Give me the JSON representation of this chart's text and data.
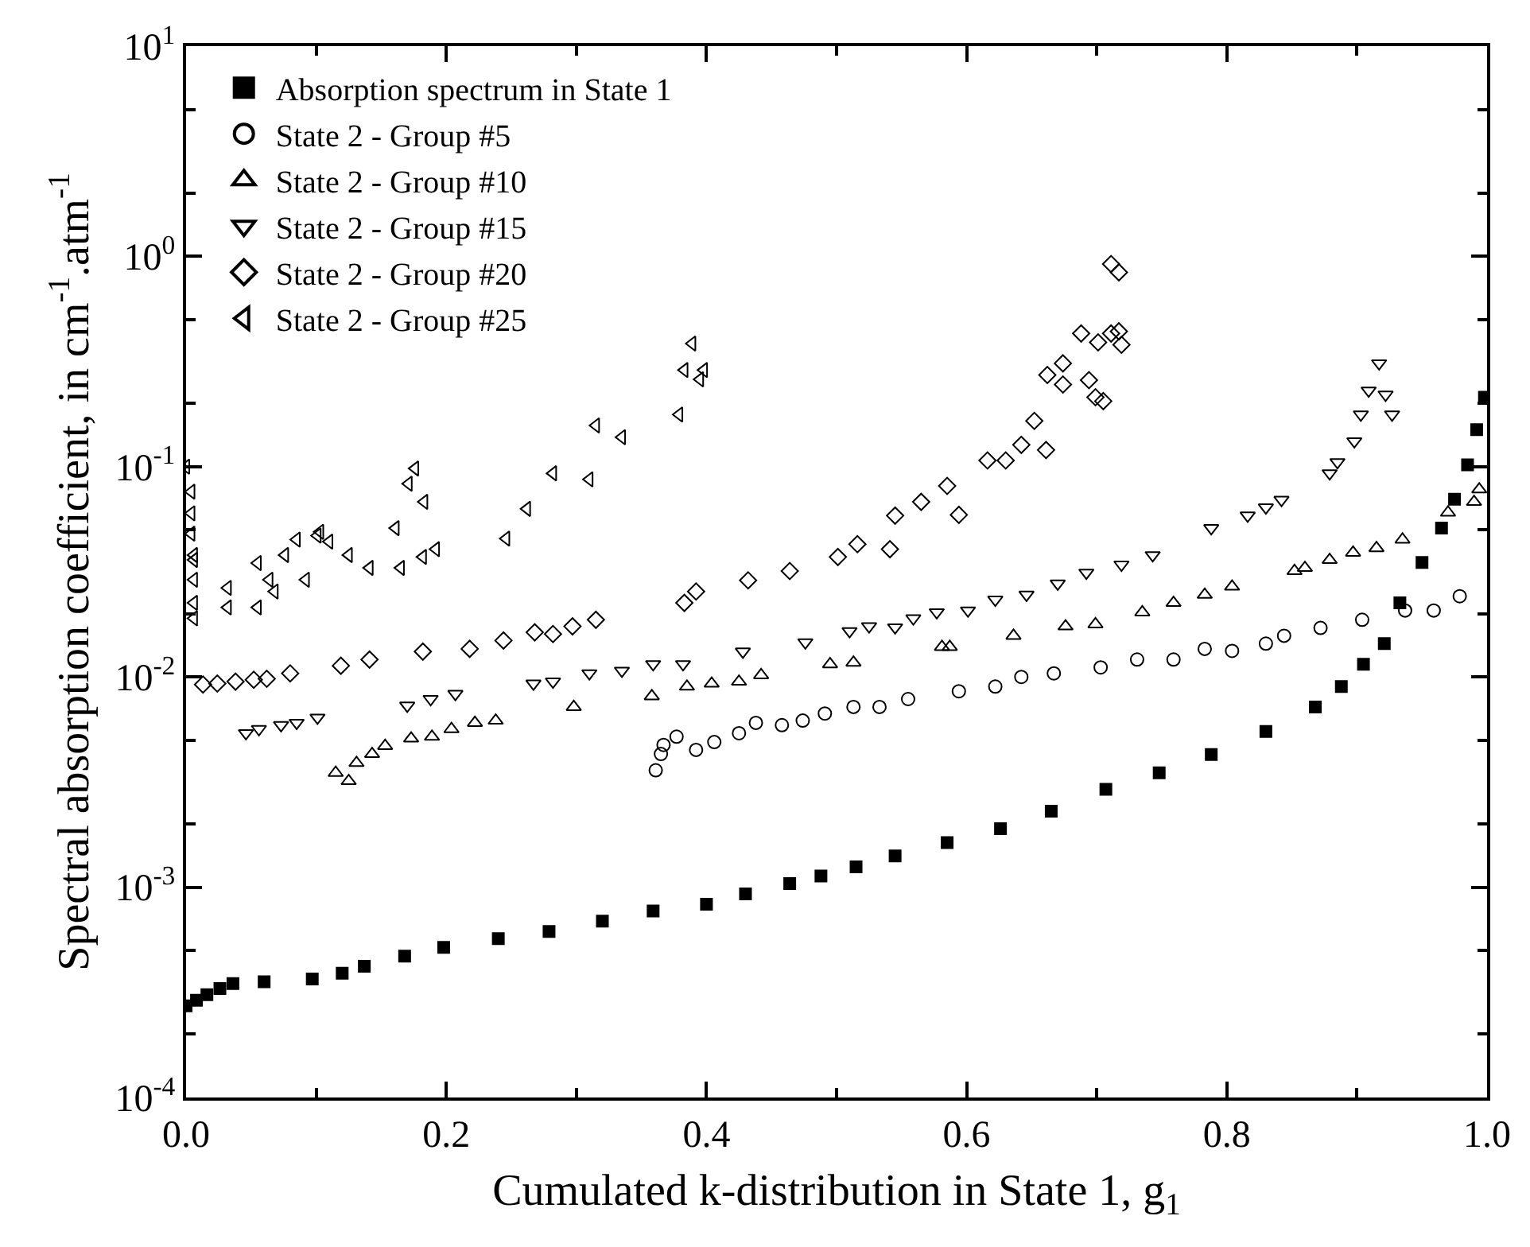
{
  "chart_data": {
    "type": "scatter",
    "xlabel": "Cumulated k-distribution in State 1, g$_{1}$",
    "ylabel": "Spectral absorption coefficient, in cm$^{-1}$.atm$^{-1}$",
    "xlim": [
      0,
      1
    ],
    "xticks": [
      {
        "value": 0,
        "label": "0.0"
      },
      0.2,
      0.4,
      0.6,
      0.8,
      {
        "value": 1,
        "label": "1.0"
      }
    ],
    "ylim": [
      0.0001,
      10
    ],
    "yticks": [
      {
        "value": 0.0001,
        "label": "10$^{-4}$"
      },
      {
        "value": 0.001,
        "label": "10$^{-3}$"
      },
      {
        "value": 0.01,
        "label": "10$^{-2}$"
      },
      {
        "value": 0.1,
        "label": "10$^{-1}$"
      },
      {
        "value": 1,
        "label": "10$^{0}$"
      },
      {
        "value": 10,
        "label": "10$^{1}$"
      }
    ],
    "log": "y",
    "legend": "top left",
    "series": [
      {
        "name": "Absorption spectrum in State 1",
        "color": "#000000",
        "marker": "square",
        "x": [
          0,
          0.008,
          0.016,
          0.026,
          0.036,
          0.06,
          0.097,
          0.12,
          0.137,
          0.168,
          0.198,
          0.24,
          0.279,
          0.32,
          0.359,
          0.4,
          0.43,
          0.464,
          0.488,
          0.515,
          0.545,
          0.585,
          0.626,
          0.665,
          0.707,
          0.748,
          0.788,
          0.83,
          0.868,
          0.888,
          0.905,
          0.921,
          0.933,
          0.95,
          0.965,
          0.975,
          0.985,
          0.992,
          0.998
        ],
        "values": [
          0.000273,
          0.00029,
          0.000308,
          0.00033,
          0.000348,
          0.000355,
          0.000366,
          0.00039,
          0.000421,
          0.00047,
          0.000518,
          0.00057,
          0.000616,
          0.00069,
          0.00077,
          0.00083,
          0.00093,
          0.00104,
          0.00113,
          0.00125,
          0.00141,
          0.00163,
          0.0019,
          0.0023,
          0.00292,
          0.0035,
          0.00428,
          0.0055,
          0.0072,
          0.009,
          0.0115,
          0.0144,
          0.0225,
          0.035,
          0.051,
          0.07,
          0.102,
          0.15,
          0.214
        ]
      },
      {
        "name": "State 2 - Group #5",
        "color": "#000000",
        "marker": "circle",
        "x": [
          0.361,
          0.365,
          0.367,
          0.377,
          0.392,
          0.406,
          0.425,
          0.438,
          0.458,
          0.474,
          0.491,
          0.513,
          0.533,
          0.555,
          0.594,
          0.622,
          0.642,
          0.667,
          0.703,
          0.731,
          0.759,
          0.783,
          0.804,
          0.83,
          0.844,
          0.872,
          0.904,
          0.937,
          0.959,
          0.979
        ],
        "values": [
          0.0036,
          0.0043,
          0.00475,
          0.0052,
          0.0045,
          0.0049,
          0.0054,
          0.00605,
          0.0059,
          0.0062,
          0.0067,
          0.0072,
          0.0072,
          0.00785,
          0.00855,
          0.009,
          0.01,
          0.0104,
          0.0111,
          0.0121,
          0.0121,
          0.0136,
          0.0133,
          0.0144,
          0.0157,
          0.0171,
          0.0187,
          0.0207,
          0.0207,
          0.0242
        ]
      },
      {
        "name": "State 2 - Group #10",
        "color": "#000000",
        "marker": "triangle",
        "x": [
          0.115,
          0.125,
          0.131,
          0.143,
          0.153,
          0.173,
          0.189,
          0.204,
          0.222,
          0.238,
          0.298,
          0.358,
          0.385,
          0.404,
          0.425,
          0.442,
          0.495,
          0.513,
          0.581,
          0.587,
          0.636,
          0.676,
          0.699,
          0.735,
          0.759,
          0.783,
          0.804,
          0.852,
          0.86,
          0.879,
          0.897,
          0.915,
          0.935,
          0.97,
          0.99,
          0.994
        ],
        "values": [
          0.0035,
          0.0032,
          0.0039,
          0.0043,
          0.0047,
          0.0051,
          0.0052,
          0.00565,
          0.00605,
          0.0062,
          0.0072,
          0.0081,
          0.009,
          0.0093,
          0.0095,
          0.0102,
          0.0115,
          0.0117,
          0.0139,
          0.0139,
          0.0157,
          0.0174,
          0.0178,
          0.0203,
          0.0225,
          0.0246,
          0.0269,
          0.0319,
          0.033,
          0.036,
          0.039,
          0.041,
          0.045,
          0.0605,
          0.068,
          0.078
        ]
      },
      {
        "name": "State 2 - Group #15",
        "color": "#000000",
        "marker": "triangle-down",
        "x": [
          0.046,
          0.056,
          0.073,
          0.085,
          0.101,
          0.17,
          0.188,
          0.207,
          0.267,
          0.282,
          0.31,
          0.335,
          0.359,
          0.382,
          0.428,
          0.476,
          0.51,
          0.525,
          0.545,
          0.559,
          0.577,
          0.601,
          0.622,
          0.646,
          0.67,
          0.692,
          0.719,
          0.743,
          0.788,
          0.816,
          0.83,
          0.842,
          0.879,
          0.885,
          0.898,
          0.903,
          0.909,
          0.917,
          0.922,
          0.927
        ],
        "values": [
          0.0054,
          0.00565,
          0.0059,
          0.00605,
          0.0064,
          0.0073,
          0.00785,
          0.0083,
          0.0093,
          0.0095,
          0.0104,
          0.0107,
          0.0115,
          0.0115,
          0.0132,
          0.0146,
          0.0165,
          0.0174,
          0.0172,
          0.019,
          0.0203,
          0.0207,
          0.0233,
          0.0246,
          0.0278,
          0.0313,
          0.0342,
          0.0379,
          0.051,
          0.0585,
          0.064,
          0.0695,
          0.093,
          0.105,
          0.132,
          0.177,
          0.23,
          0.31,
          0.22,
          0.177
        ]
      },
      {
        "name": "State 2 - Group #20",
        "color": "#000000",
        "marker": "diamond",
        "x": [
          0.013,
          0.024,
          0.038,
          0.052,
          0.062,
          0.08,
          0.119,
          0.141,
          0.182,
          0.218,
          0.244,
          0.268,
          0.282,
          0.297,
          0.315,
          0.383,
          0.392,
          0.432,
          0.464,
          0.501,
          0.516,
          0.541,
          0.545,
          0.565,
          0.585,
          0.594,
          0.616,
          0.63,
          0.642,
          0.652,
          0.661,
          0.662,
          0.674,
          0.674,
          0.688,
          0.694,
          0.699,
          0.701,
          0.705,
          0.711,
          0.711,
          0.717,
          0.717,
          0.719
        ],
        "values": [
          0.0092,
          0.0093,
          0.0095,
          0.0097,
          0.0098,
          0.0104,
          0.0113,
          0.0121,
          0.0132,
          0.0136,
          0.0149,
          0.0163,
          0.016,
          0.0174,
          0.0187,
          0.0225,
          0.0255,
          0.0288,
          0.0319,
          0.0372,
          0.0428,
          0.0405,
          0.0585,
          0.068,
          0.081,
          0.059,
          0.107,
          0.107,
          0.127,
          0.165,
          0.12,
          0.273,
          0.31,
          0.246,
          0.43,
          0.258,
          0.214,
          0.39,
          0.205,
          0.43,
          0.92,
          0.44,
          0.84,
          0.38
        ]
      },
      {
        "name": "State 2 - Group #25",
        "color": "#000000",
        "marker": "triangle-left",
        "x": [
          0,
          0.004,
          0.004,
          0.004,
          0.006,
          0.006,
          0.006,
          0.006,
          0.006,
          0.032,
          0.032,
          0.055,
          0.055,
          0.064,
          0.068,
          0.076,
          0.085,
          0.092,
          0.101,
          0.103,
          0.11,
          0.125,
          0.141,
          0.161,
          0.165,
          0.171,
          0.176,
          0.182,
          0.183,
          0.192,
          0.246,
          0.262,
          0.282,
          0.31,
          0.315,
          0.335,
          0.379,
          0.383,
          0.389,
          0.395,
          0.398
        ],
        "values": [
          0.1,
          0.076,
          0.06,
          0.048,
          0.038,
          0.036,
          0.029,
          0.0225,
          0.019,
          0.0265,
          0.0214,
          0.0348,
          0.0214,
          0.029,
          0.0255,
          0.038,
          0.045,
          0.029,
          0.047,
          0.049,
          0.044,
          0.038,
          0.033,
          0.051,
          0.033,
          0.083,
          0.098,
          0.0372,
          0.068,
          0.0405,
          0.0455,
          0.063,
          0.093,
          0.087,
          0.157,
          0.138,
          0.177,
          0.288,
          0.385,
          0.26,
          0.288
        ]
      }
    ]
  }
}
